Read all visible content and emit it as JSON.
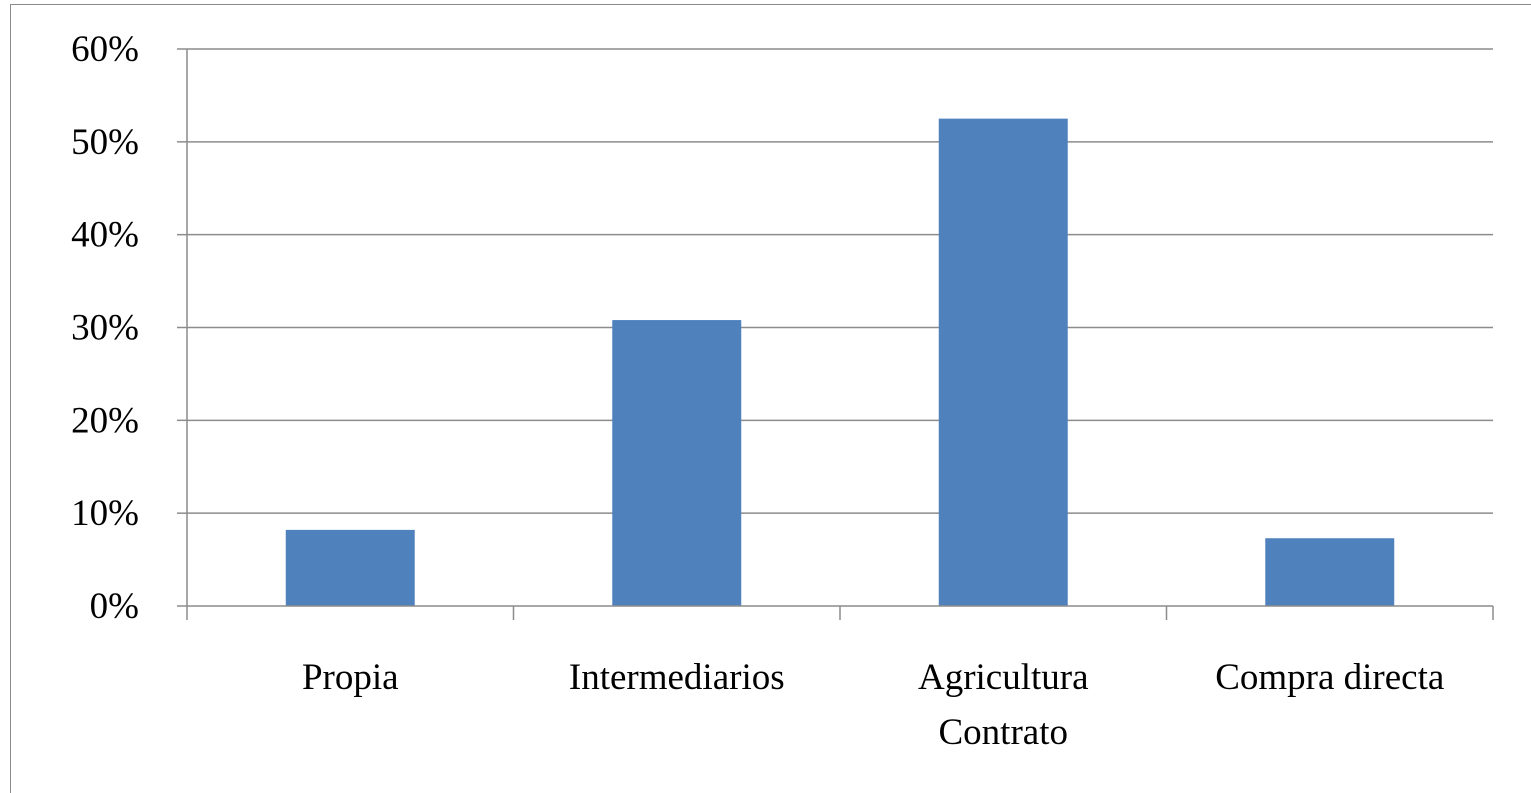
{
  "chart_data": {
    "type": "bar",
    "title": "",
    "xlabel": "",
    "ylabel": "",
    "categories": [
      [
        "Propia"
      ],
      [
        "Intermediarios"
      ],
      [
        "Agricultura",
        "Contrato"
      ],
      [
        "Compra directa"
      ]
    ],
    "values": [
      8.2,
      30.8,
      52.5,
      7.3
    ],
    "ylim": [
      0,
      60
    ],
    "yticks": [
      0,
      10,
      20,
      30,
      40,
      50,
      60
    ],
    "ytick_labels": [
      "0%",
      "10%",
      "20%",
      "30%",
      "40%",
      "50%",
      "60%"
    ],
    "grid": true,
    "legend": "none",
    "bar_color": "#4f81bd"
  }
}
